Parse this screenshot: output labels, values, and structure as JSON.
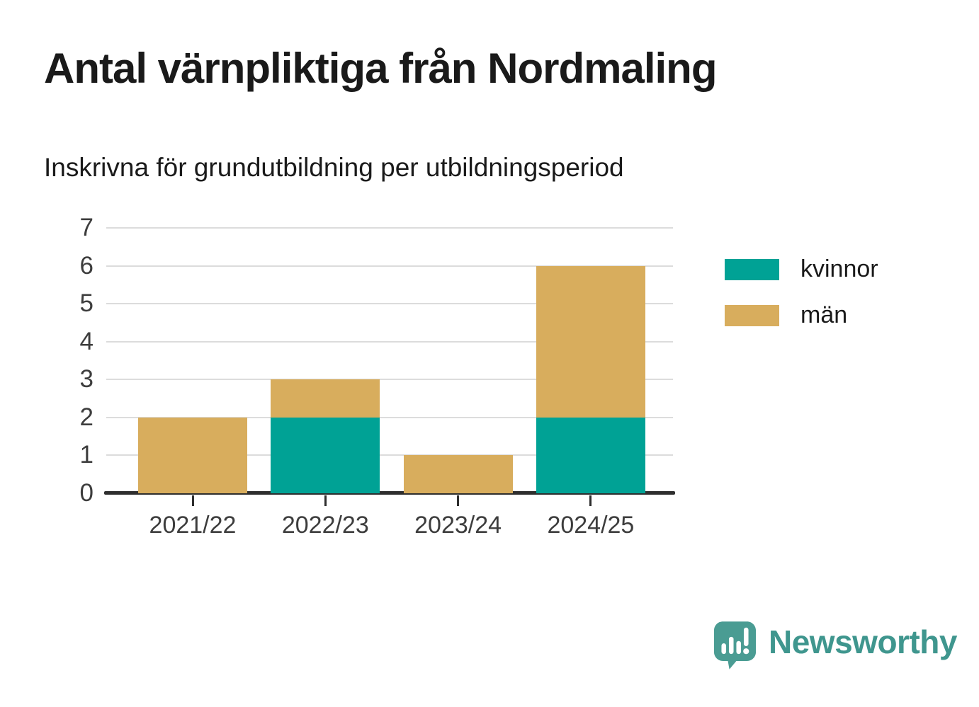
{
  "header": {
    "title": "Antal värnpliktiga från Nordmaling",
    "subtitle": "Inskrivna för grundutbildning per utbildningsperiod"
  },
  "colors": {
    "kvinnor": "#00a295",
    "man": "#d8ad5d",
    "grid": "#dcdcdc",
    "axis": "#2e2e2e",
    "tick_label": "#3d3d3d",
    "title_text": "#1a1a1a",
    "logo": "#3f968e",
    "logo_bubble": "#4a9c93"
  },
  "chart_data": {
    "type": "bar",
    "stacked": true,
    "title": "Antal värnpliktiga från Nordmaling",
    "subtitle": "Inskrivna för grundutbildning per utbildningsperiod",
    "categories": [
      "2021/22",
      "2022/23",
      "2023/24",
      "2024/25"
    ],
    "series": [
      {
        "name": "kvinnor",
        "color": "#00a295",
        "values": [
          0,
          2,
          0,
          2
        ]
      },
      {
        "name": "män",
        "color": "#d8ad5d",
        "values": [
          2,
          1,
          1,
          4
        ]
      }
    ],
    "totals": [
      2,
      3,
      1,
      6
    ],
    "xlabel": "",
    "ylabel": "",
    "ylim": [
      0,
      7
    ],
    "yticks": [
      0,
      1,
      2,
      3,
      4,
      5,
      6,
      7
    ],
    "grid": true,
    "legend_position": "right"
  },
  "legend": {
    "items": [
      {
        "label": "kvinnor",
        "color": "#00a295"
      },
      {
        "label": "män",
        "color": "#d8ad5d"
      }
    ]
  },
  "footer": {
    "brand": "Newsworthy",
    "logo_icon": "speech-bubble-bar-chart-exclamation-icon"
  }
}
